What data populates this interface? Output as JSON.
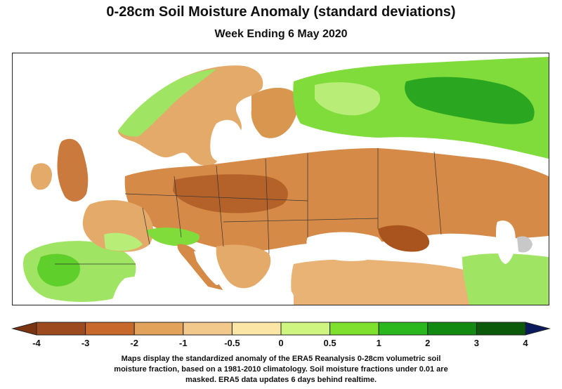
{
  "title": "0-28cm Soil Moisture Anomaly (standard deviations)",
  "subtitle": "Week Ending 6 May 2020",
  "colorbar": {
    "tick_labels": [
      "-4",
      "-3",
      "-2",
      "-1",
      "-0.5",
      "0",
      "0.5",
      "1",
      "2",
      "3",
      "4"
    ],
    "colors": [
      "#9c4a1e",
      "#c8682a",
      "#e2a25a",
      "#f2c98a",
      "#fbe6a6",
      "#cdf580",
      "#7fe02e",
      "#2bb81f",
      "#128a12",
      "#0a5a0a"
    ],
    "under_color": "#7a3412",
    "over_color": "#0a1a5c"
  },
  "caption": {
    "line1": "Maps display the standardized anomaly of the ERA5 Reanalysis 0-28cm volumetric soil",
    "line2": "moisture fraction, based on a 1981-2010 climatology.  Soil moisture fractions under 0.01 are",
    "line3": "masked.  ERA5 data updates 6 days behind realtime."
  },
  "map": {
    "region": "Europe",
    "land_colors": {
      "very_dry": "#b5622a",
      "dry": "#d58a47",
      "slightly_dry": "#e8b374",
      "near_normal": "#f6d9a0",
      "wet": "#b8ee78",
      "very_wet": "#5fcf2c",
      "extremely_wet": "#23a51b"
    },
    "water_color": "#ffffff",
    "masked_color": "#c8c8c8"
  }
}
